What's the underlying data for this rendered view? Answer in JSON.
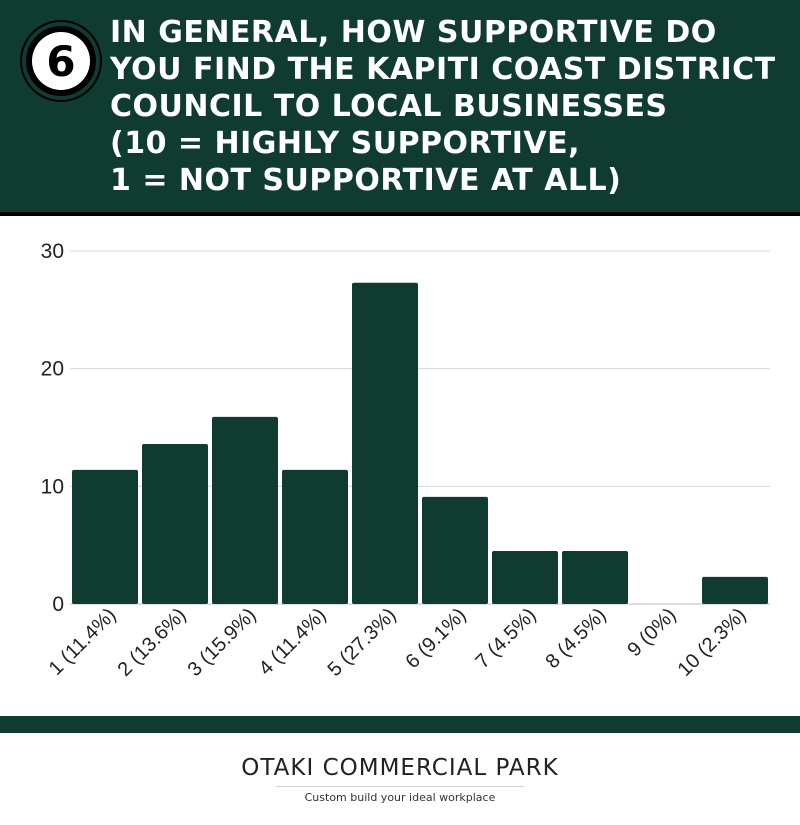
{
  "header": {
    "number": "6",
    "title_lines": [
      "IN GENERAL, HOW SUPPORTIVE DO",
      "YOU FIND THE KAPITI COAST DISTRICT",
      "COUNCIL TO LOCAL BUSINESSES",
      "(10 = HIGHLY SUPPORTIVE,",
      "1 = NOT SUPPORTIVE AT ALL)"
    ]
  },
  "chart_data": {
    "type": "bar",
    "categories": [
      "1 (11.4%)",
      "2 (13.6%)",
      "3 (15.9%)",
      "4 (11.4%)",
      "5 (27.3%)",
      "6 (9.1%)",
      "7 (4.5%)",
      "8 (4.5%)",
      "9 (0%)",
      "10 (2.3%)"
    ],
    "values": [
      11.4,
      13.6,
      15.9,
      11.4,
      27.3,
      9.1,
      4.5,
      4.5,
      0,
      2.3
    ],
    "yticks": [
      "0",
      "10",
      "20",
      "30"
    ],
    "ylim": [
      0,
      30
    ],
    "grid": true,
    "bar_color": "#0f3b30"
  },
  "footer": {
    "brand": "OTAKI COMMERCIAL PARK",
    "tagline": "Custom build your ideal workplace"
  },
  "colors": {
    "accent": "#0f3b30"
  }
}
